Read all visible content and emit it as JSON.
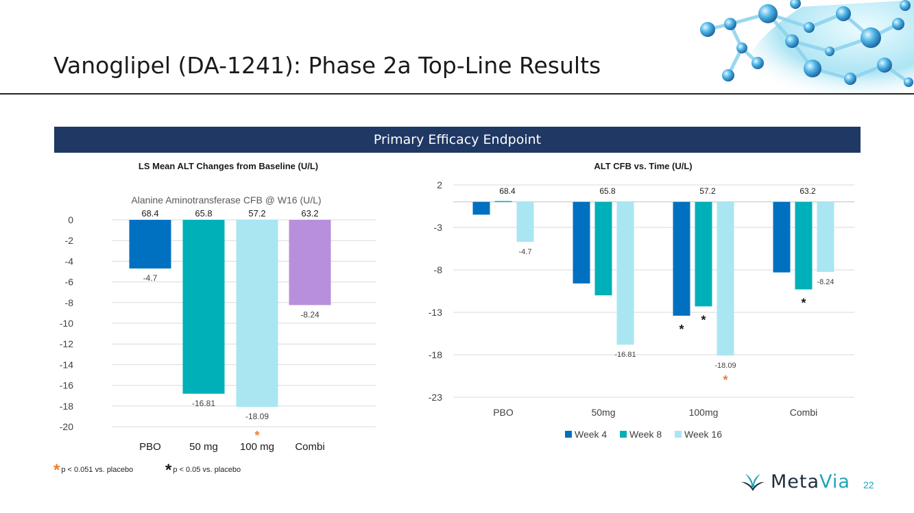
{
  "slide": {
    "title": "Vanoglipel (DA-1241): Phase 2a Top-Line Results",
    "banner": "Primary Efficacy Endpoint",
    "page_number": "22"
  },
  "logo": {
    "name_part1": "Meta",
    "name_part2": "Via"
  },
  "footnotes": [
    {
      "symbol": "*",
      "color": "#ed7d31",
      "text": "p < 0.051 vs. placebo"
    },
    {
      "symbol": "*",
      "color": "#1a1a1a",
      "text": "p < 0.05 vs. placebo"
    }
  ],
  "colors": {
    "pbo": "#0070c0",
    "mg50": "#00b0b9",
    "mg100": "#a9e6f2",
    "combi": "#b78fdc",
    "week4": "#0070c0",
    "week8": "#00b0b9",
    "week16": "#a9e6f2",
    "orange_star": "#ed7d31",
    "banner": "#203864"
  },
  "chart_data": [
    {
      "type": "bar",
      "title": "LS Mean ALT Changes from Baseline (U/L)",
      "subtitle": "Alanine Aminotransferase CFB @ W16 (U/L)",
      "categories": [
        "PBO",
        "50 mg",
        "100 mg",
        "Combi"
      ],
      "values": [
        -4.7,
        -16.81,
        -18.09,
        -8.24
      ],
      "value_labels": [
        "-4.7",
        "-16.81",
        "-18.09",
        "-8.24"
      ],
      "baseline_labels": [
        "68.4",
        "65.8",
        "57.2",
        "63.2"
      ],
      "yticks": [
        "0",
        "-2",
        "-4",
        "-6",
        "-8",
        "-10",
        "-12",
        "-14",
        "-16",
        "-18",
        "-20"
      ],
      "ylim": [
        -20,
        0
      ],
      "grid": true,
      "annotations": [
        {
          "category": "100 mg",
          "symbol": "*",
          "color": "#ed7d31"
        }
      ]
    },
    {
      "type": "bar",
      "title": "ALT CFB vs. Time (U/L)",
      "categories": [
        "PBO",
        "50mg",
        "100mg",
        "Combi"
      ],
      "series": [
        {
          "name": "Week 4",
          "values": [
            -1.5,
            -9.6,
            -13.4,
            -8.3
          ]
        },
        {
          "name": "Week 8",
          "values": [
            0.1,
            -11.0,
            -12.3,
            -10.3
          ]
        },
        {
          "name": "Week 16",
          "values": [
            -4.7,
            -16.81,
            -18.09,
            -8.24
          ]
        }
      ],
      "value_labels": [
        "-4.7",
        "-16.81",
        "-18.09",
        "-8.24"
      ],
      "baseline_labels": [
        "68.4",
        "65.8",
        "57.2",
        "63.2"
      ],
      "yticks": [
        "2",
        "-3",
        "-8",
        "-13",
        "-18",
        "-23"
      ],
      "ylim": [
        -23,
        2
      ],
      "grid": true,
      "legend": "bottom",
      "annotations": [
        {
          "category": "100mg",
          "series": "Week 4",
          "symbol": "*",
          "color": "#1a1a1a"
        },
        {
          "category": "100mg",
          "series": "Week 8",
          "symbol": "*",
          "color": "#1a1a1a"
        },
        {
          "category": "100mg",
          "series": "Week 16",
          "symbol": "*",
          "color": "#ed7d31"
        },
        {
          "category": "Combi",
          "series": "Week 8",
          "symbol": "*",
          "color": "#1a1a1a"
        }
      ]
    }
  ]
}
